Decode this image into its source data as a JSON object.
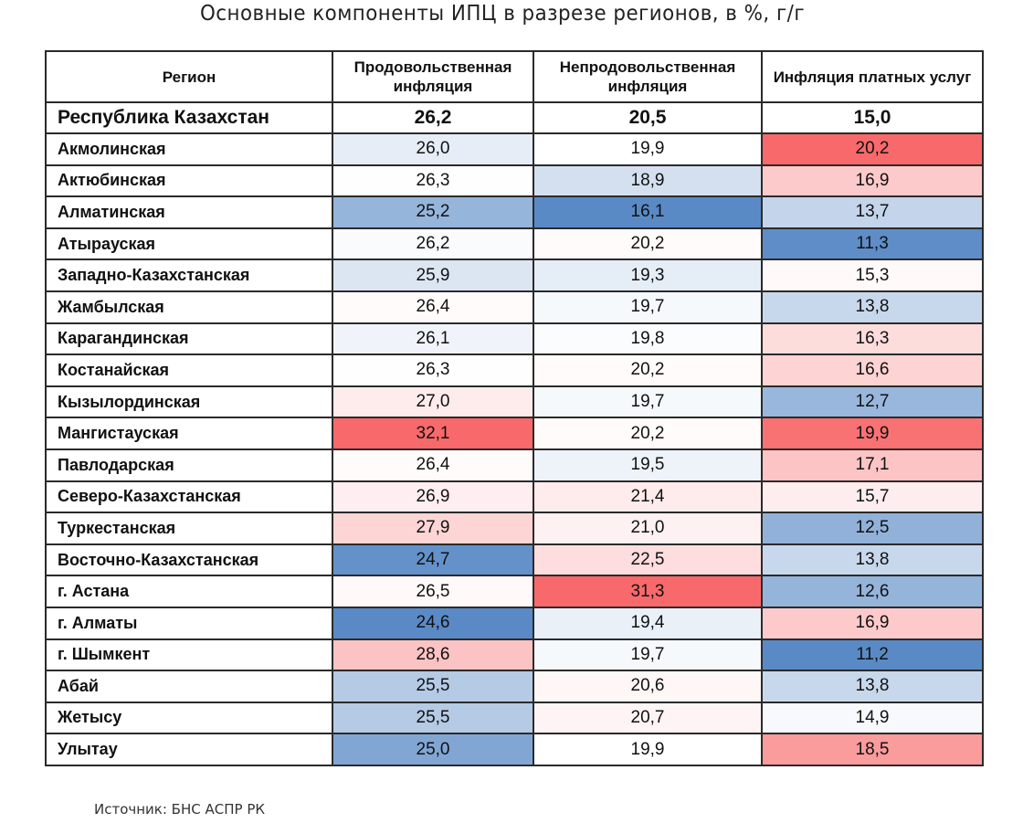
{
  "title": "Основные компоненты ИПЦ в разрезе регионов, в %, г/г",
  "source": "Источник: БНС АСПР РК",
  "chart_data": {
    "type": "heatmap",
    "title": "Основные компоненты ИПЦ в разрезе регионов, в %, г/г",
    "columns": [
      "Регион",
      "Продовольственная инфляция",
      "Непродовольственная инфляция",
      "Инфляция платных услуг"
    ],
    "total": {
      "region": "Республика Казахстан",
      "values": [
        "26,2",
        "20,5",
        "15,0"
      ]
    },
    "color_scale": {
      "low": "#5a8ac6",
      "mid": "#ffffff",
      "high": "#f8696b"
    },
    "rows": [
      {
        "region": "Акмолинская",
        "values": [
          "26,0",
          "19,9",
          "20,2"
        ]
      },
      {
        "region": "Актюбинская",
        "values": [
          "26,3",
          "18,9",
          "16,9"
        ]
      },
      {
        "region": "Алматинская",
        "values": [
          "25,2",
          "16,1",
          "13,7"
        ]
      },
      {
        "region": "Атырауская",
        "values": [
          "26,2",
          "20,2",
          "11,3"
        ]
      },
      {
        "region": "Западно-Казахстанская",
        "values": [
          "25,9",
          "19,3",
          "15,3"
        ]
      },
      {
        "region": "Жамбылская",
        "values": [
          "26,4",
          "19,7",
          "13,8"
        ]
      },
      {
        "region": "Карагандинская",
        "values": [
          "26,1",
          "19,8",
          "16,3"
        ]
      },
      {
        "region": "Костанайская",
        "values": [
          "26,3",
          "20,2",
          "16,6"
        ]
      },
      {
        "region": "Кызылординская",
        "values": [
          "27,0",
          "19,7",
          "12,7"
        ]
      },
      {
        "region": "Мангистауская",
        "values": [
          "32,1",
          "20,2",
          "19,9"
        ]
      },
      {
        "region": "Павлодарская",
        "values": [
          "26,4",
          "19,5",
          "17,1"
        ]
      },
      {
        "region": "Северо-Казахстанская",
        "values": [
          "26,9",
          "21,4",
          "15,7"
        ]
      },
      {
        "region": "Туркестанская",
        "values": [
          "27,9",
          "21,0",
          "12,5"
        ]
      },
      {
        "region": "Восточно-Казахстанская",
        "values": [
          "24,7",
          "22,5",
          "13,8"
        ]
      },
      {
        "region": "г. Астана",
        "values": [
          "26,5",
          "31,3",
          "12,6"
        ]
      },
      {
        "region": "г. Алматы",
        "values": [
          "24,6",
          "19,4",
          "16,9"
        ]
      },
      {
        "region": "г. Шымкент",
        "values": [
          "28,6",
          "19,7",
          "11,2"
        ]
      },
      {
        "region": "Абай",
        "values": [
          "25,5",
          "20,6",
          "13,8"
        ]
      },
      {
        "region": "Жетысу",
        "values": [
          "25,5",
          "20,7",
          "14,9"
        ]
      },
      {
        "region": "Улытау",
        "values": [
          "25,0",
          "19,9",
          "18,5"
        ]
      }
    ]
  }
}
